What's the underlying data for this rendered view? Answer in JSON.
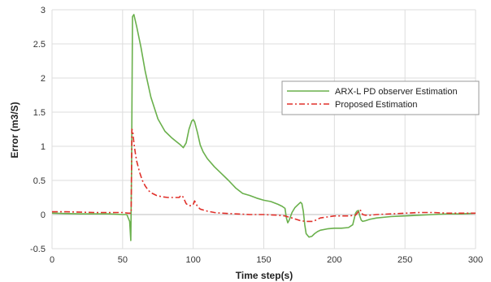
{
  "chart_data": {
    "type": "line",
    "title": "",
    "xlabel": "Time step(s)",
    "ylabel": "Error (m3/S)",
    "xlim": [
      0,
      300
    ],
    "ylim": [
      -0.5,
      3
    ],
    "xticks": [
      "0",
      "50",
      "100",
      "150",
      "200",
      "250",
      "300"
    ],
    "yticks": [
      "-0.5",
      "0",
      "0.5",
      "1",
      "1.5",
      "2",
      "2.5",
      "3"
    ],
    "grid": true,
    "legend_position": "right",
    "series": [
      {
        "name": "ARX-L PD observer Estimation",
        "color": "#6ab04c",
        "style": "solid",
        "x": [
          0,
          20,
          40,
          50,
          53,
          55,
          55.8,
          56.3,
          57,
          58,
          60,
          63,
          66,
          70,
          75,
          80,
          85,
          88,
          91,
          93,
          95,
          97,
          99,
          100,
          101,
          103,
          105,
          107,
          110,
          115,
          120,
          125,
          130,
          135,
          140,
          145,
          150,
          155,
          160,
          163,
          165,
          166,
          167,
          168,
          170,
          172,
          174,
          176,
          177,
          178,
          179,
          180,
          182,
          184,
          186,
          188,
          190,
          195,
          200,
          205,
          210,
          213,
          215,
          216,
          217,
          218,
          219,
          220,
          222,
          225,
          230,
          240,
          250,
          260,
          270,
          280,
          290,
          300
        ],
        "y": [
          0.02,
          0.01,
          0.01,
          0.0,
          0.0,
          -0.1,
          -0.38,
          0.6,
          2.9,
          2.93,
          2.75,
          2.45,
          2.1,
          1.72,
          1.4,
          1.22,
          1.12,
          1.07,
          1.02,
          0.98,
          1.05,
          1.25,
          1.37,
          1.39,
          1.36,
          1.2,
          1.02,
          0.92,
          0.82,
          0.7,
          0.6,
          0.5,
          0.39,
          0.31,
          0.28,
          0.24,
          0.21,
          0.19,
          0.15,
          0.12,
          0.09,
          -0.05,
          -0.12,
          -0.08,
          0.03,
          0.1,
          0.14,
          0.18,
          0.16,
          0.05,
          -0.15,
          -0.28,
          -0.33,
          -0.32,
          -0.28,
          -0.25,
          -0.23,
          -0.21,
          -0.2,
          -0.2,
          -0.19,
          -0.15,
          0.02,
          0.05,
          0.06,
          -0.02,
          -0.08,
          -0.1,
          -0.09,
          -0.07,
          -0.05,
          -0.03,
          -0.02,
          -0.01,
          0.0,
          0.01,
          0.01,
          0.02
        ]
      },
      {
        "name": "Proposed Estimation",
        "color": "#e0302a",
        "style": "dashdot",
        "x": [
          0,
          10,
          30,
          50,
          54,
          56,
          56.6,
          57.2,
          58,
          59,
          60,
          62,
          64,
          66,
          68,
          70,
          74,
          78,
          82,
          86,
          90,
          91,
          92,
          93,
          95,
          97,
          99,
          100,
          101,
          102,
          103,
          105,
          110,
          115,
          120,
          130,
          140,
          150,
          160,
          165,
          168,
          170,
          173,
          176,
          180,
          185,
          190,
          200,
          210,
          215,
          217,
          218,
          219,
          220,
          222,
          225,
          230,
          240,
          250,
          260,
          270,
          280,
          290,
          300
        ],
        "y": [
          0.04,
          0.04,
          0.03,
          0.03,
          0.02,
          0.02,
          1.25,
          1.22,
          1.05,
          0.9,
          0.78,
          0.62,
          0.5,
          0.42,
          0.36,
          0.32,
          0.28,
          0.26,
          0.25,
          0.25,
          0.25,
          0.27,
          0.28,
          0.25,
          0.16,
          0.13,
          0.13,
          0.15,
          0.2,
          0.16,
          0.12,
          0.08,
          0.05,
          0.03,
          0.02,
          0.01,
          0.0,
          0.0,
          -0.01,
          -0.02,
          -0.04,
          -0.05,
          -0.07,
          -0.09,
          -0.1,
          -0.1,
          -0.05,
          -0.02,
          -0.02,
          -0.01,
          0.04,
          0.07,
          0.05,
          0.0,
          -0.01,
          -0.01,
          0.0,
          0.01,
          0.02,
          0.03,
          0.03,
          0.02,
          0.02,
          0.02
        ]
      }
    ]
  }
}
